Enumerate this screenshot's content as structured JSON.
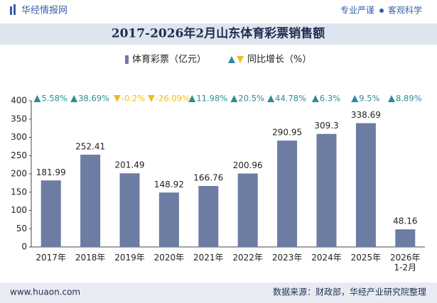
{
  "header": {
    "logo": "华经情报网",
    "tagline_left": "专业严谨",
    "tagline_right": "客观科学"
  },
  "chart_data": {
    "type": "bar",
    "title": "2017-2026年2月山东体育彩票销售额",
    "categories": [
      "2017年",
      "2018年",
      "2019年",
      "2020年",
      "2021年",
      "2022年",
      "2023年",
      "2024年",
      "2025年",
      "2026年\n1-2月"
    ],
    "series": [
      {
        "name": "体育彩票（亿元）",
        "color": "#6d7ca3",
        "values": [
          181.99,
          252.41,
          201.49,
          148.92,
          166.76,
          200.96,
          290.95,
          309.3,
          338.69,
          48.16
        ]
      },
      {
        "name": "同比增长（%）",
        "up_color": "#2e8b9a",
        "down_color": "#f0bd1e",
        "values": [
          5.58,
          38.69,
          -0.2,
          -26.09,
          11.98,
          20.5,
          44.78,
          6.3,
          9.5,
          8.89
        ],
        "value_labels": [
          "5.58%",
          "38.69%",
          "-0.2%",
          "-26.09%",
          "11.98%",
          "20.5%",
          "44.78%",
          "6.3%",
          "9.5%",
          "8.89%"
        ]
      }
    ],
    "ylim": [
      0,
      400
    ],
    "yticks": [
      0,
      50,
      100,
      150,
      200,
      250,
      300,
      350,
      400
    ],
    "grid": false
  },
  "footer": {
    "website": "www.huaon.com",
    "source": "数据来源：财政部，华经产业研究院整理"
  }
}
